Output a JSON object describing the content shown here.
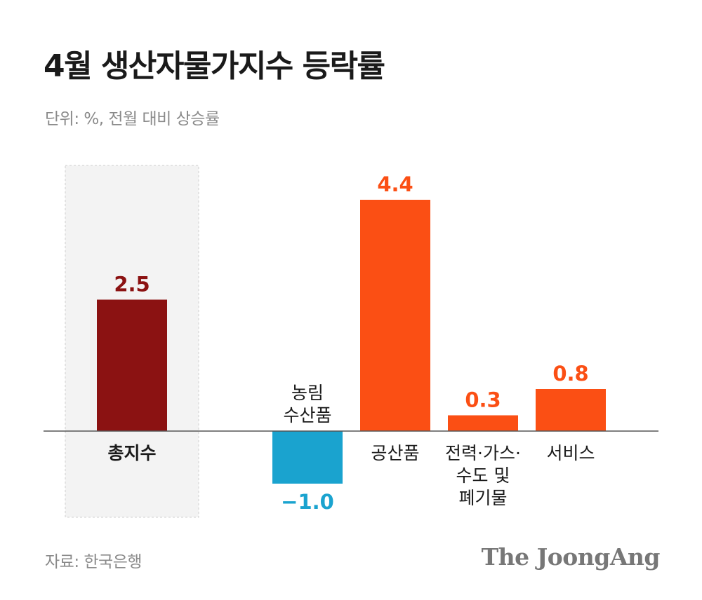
{
  "header": {
    "title": "4월 생산자물가지수 등락률",
    "subtitle": "단위: %, 전월 대비 상승률"
  },
  "footer": {
    "source": "자료: 한국은행",
    "brand": "The JoongAng"
  },
  "colors": {
    "total": "#8b1212",
    "positive": "#fb4f14",
    "negative": "#1aa3cf",
    "highlight_box": "#f3f3f3",
    "axis": "#555555",
    "label": "#1a1a1a"
  },
  "chart_data": {
    "type": "bar",
    "categories": [
      "총지수",
      "농림\n수산품",
      "공산품",
      "전력·가스·\n수도 및\n폐기물",
      "서비스"
    ],
    "values": [
      2.5,
      -1.0,
      4.4,
      0.3,
      0.8
    ],
    "value_labels": [
      "2.5",
      "−1.0",
      "4.4",
      "0.3",
      "0.8"
    ],
    "ylim": [
      -1.3,
      5.2
    ],
    "highlighted_category": "총지수",
    "xlabel": "",
    "ylabel": ""
  }
}
